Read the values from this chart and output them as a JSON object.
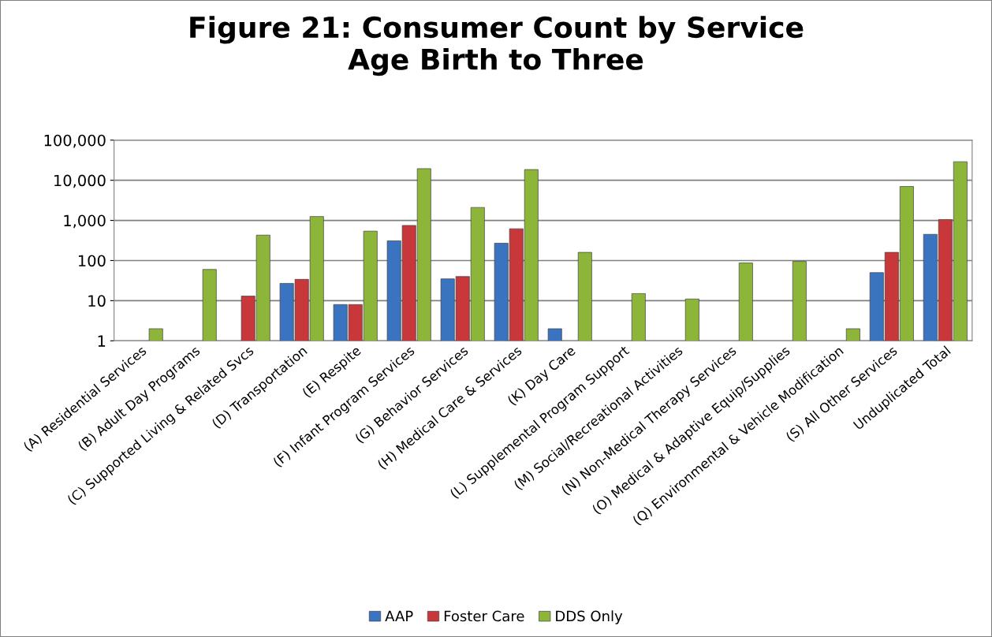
{
  "chart_data": {
    "type": "bar",
    "title": "Figure 21: Consumer Count by Service\nAge Birth to Three",
    "categories": [
      "(A) Residential Services",
      "(B) Adult Day Programs",
      "(C) Supported Living & Related Svcs",
      "(D) Transportation",
      "(E) Respite",
      "(F) Infant Program Services",
      "(G) Behavior Services",
      "(H) Medical Care & Services",
      "(K) Day Care",
      "(L) Supplemental Program Support",
      "(M) Social/Recreational Activities",
      "(N) Non-Medical Therapy Services",
      "(O) Medical & Adaptive Equip/Supplies",
      "(Q) Environmental & Vehicle Modification",
      "(S) All Other Services",
      "Unduplicated Total"
    ],
    "series": [
      {
        "name": "AAP",
        "color": "#3a74c0",
        "values": [
          null,
          null,
          null,
          27,
          8,
          310,
          35,
          270,
          2,
          null,
          null,
          null,
          null,
          null,
          50,
          450
        ]
      },
      {
        "name": "Foster Care",
        "color": "#c8373a",
        "values": [
          null,
          null,
          13,
          34,
          8,
          750,
          40,
          620,
          null,
          null,
          null,
          null,
          null,
          null,
          160,
          1050
        ]
      },
      {
        "name": "DDS Only",
        "color": "#8cb53a",
        "values": [
          2,
          60,
          430,
          1250,
          540,
          19500,
          2100,
          18500,
          160,
          15,
          11,
          87,
          95,
          2,
          7000,
          29000
        ]
      }
    ],
    "log": true,
    "ylim": [
      1,
      100000
    ],
    "yticks": [
      1,
      10,
      100,
      {
        "value": 1000,
        "label": "1,000"
      },
      {
        "value": 10000,
        "label": "10,000"
      },
      {
        "value": 100000,
        "label": "100,000"
      }
    ],
    "grid": "y",
    "legend": "bottom"
  }
}
